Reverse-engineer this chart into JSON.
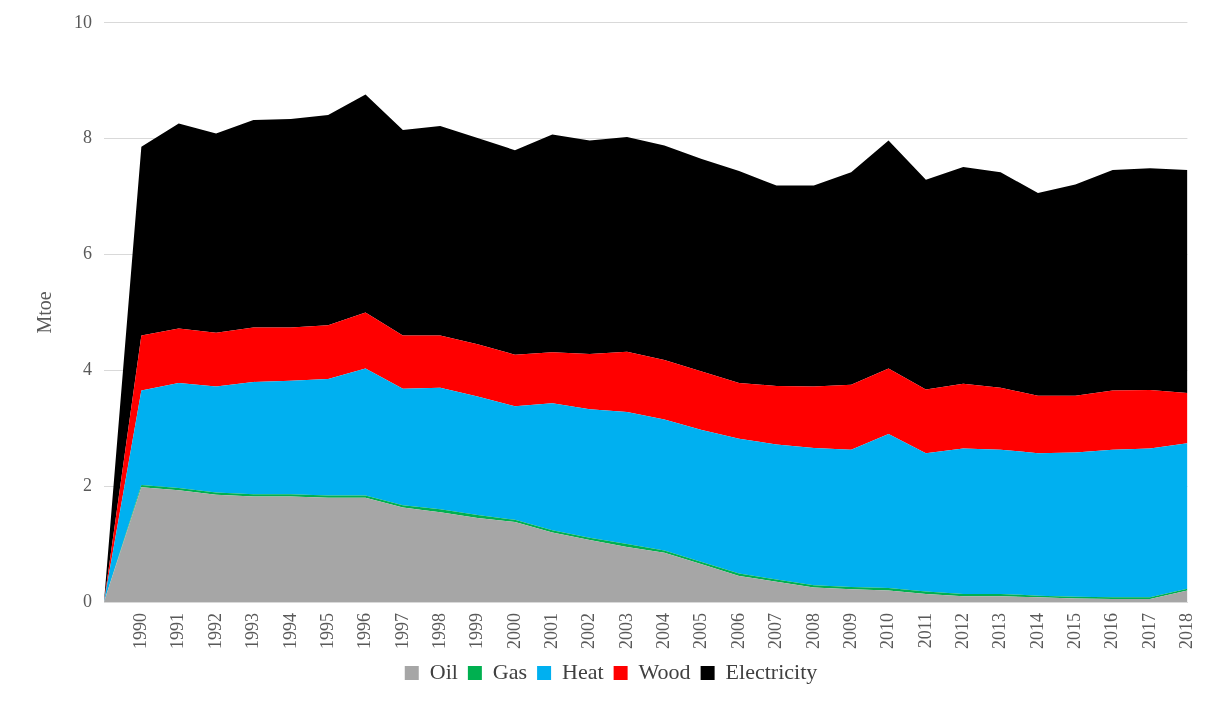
{
  "chart_data": {
    "type": "area",
    "stacked": true,
    "ylabel": "Mtoe",
    "categories": [
      null,
      "1990",
      "1991",
      "1992",
      "1993",
      "1994",
      "1995",
      "1996",
      "1997",
      "1998",
      "1999",
      "2000",
      "2001",
      "2002",
      "2003",
      "2004",
      "2005",
      "2006",
      "2007",
      "2008",
      "2009",
      "2010",
      "2011",
      "2012",
      "2013",
      "2014",
      "2015",
      "2016",
      "2017",
      "2018"
    ],
    "ylim": [
      0,
      10
    ],
    "yticks": [
      0,
      2,
      4,
      6,
      8,
      10
    ],
    "grid": "y",
    "legend": "bottom",
    "marker": "none",
    "series": [
      {
        "name": "Oil",
        "color": "#a6a6a6",
        "values": [
          0,
          1.98,
          1.93,
          1.85,
          1.82,
          1.82,
          1.8,
          1.8,
          1.63,
          1.55,
          1.45,
          1.38,
          1.2,
          1.07,
          0.95,
          0.85,
          0.65,
          0.45,
          0.35,
          0.25,
          0.22,
          0.2,
          0.14,
          0.1,
          0.1,
          0.08,
          0.06,
          0.05,
          0.05,
          0.2
        ]
      },
      {
        "name": "Gas",
        "color": "#00b050",
        "values": [
          0,
          0.04,
          0.04,
          0.04,
          0.04,
          0.04,
          0.04,
          0.04,
          0.04,
          0.05,
          0.05,
          0.04,
          0.04,
          0.04,
          0.05,
          0.04,
          0.04,
          0.04,
          0.04,
          0.04,
          0.04,
          0.04,
          0.04,
          0.04,
          0.04,
          0.03,
          0.03,
          0.03,
          0.03,
          0.03
        ]
      },
      {
        "name": "Heat",
        "color": "#00b0f0",
        "values": [
          0,
          1.63,
          1.81,
          1.83,
          1.94,
          1.96,
          2.01,
          2.19,
          2.01,
          2.1,
          2.05,
          1.96,
          2.19,
          2.22,
          2.28,
          2.26,
          2.28,
          2.33,
          2.33,
          2.37,
          2.37,
          2.66,
          2.39,
          2.51,
          2.49,
          2.46,
          2.49,
          2.55,
          2.57,
          2.51
        ]
      },
      {
        "name": "Wood",
        "color": "#ff0000",
        "values": [
          0,
          0.95,
          0.94,
          0.93,
          0.94,
          0.92,
          0.93,
          0.97,
          0.92,
          0.9,
          0.9,
          0.89,
          0.88,
          0.95,
          1.04,
          1.03,
          1.01,
          0.96,
          1.01,
          1.06,
          1.12,
          1.13,
          1.1,
          1.12,
          1.07,
          0.99,
          0.98,
          1.02,
          1.01,
          0.87
        ]
      },
      {
        "name": "Electricity",
        "color": "#000000",
        "values": [
          0,
          3.26,
          3.54,
          3.44,
          3.58,
          3.6,
          3.63,
          3.76,
          3.55,
          3.62,
          3.56,
          3.53,
          3.76,
          3.69,
          3.71,
          3.7,
          3.67,
          3.66,
          3.46,
          3.47,
          3.67,
          3.94,
          3.62,
          3.74,
          3.72,
          3.5,
          3.65,
          3.81,
          3.83,
          3.85
        ]
      }
    ]
  }
}
